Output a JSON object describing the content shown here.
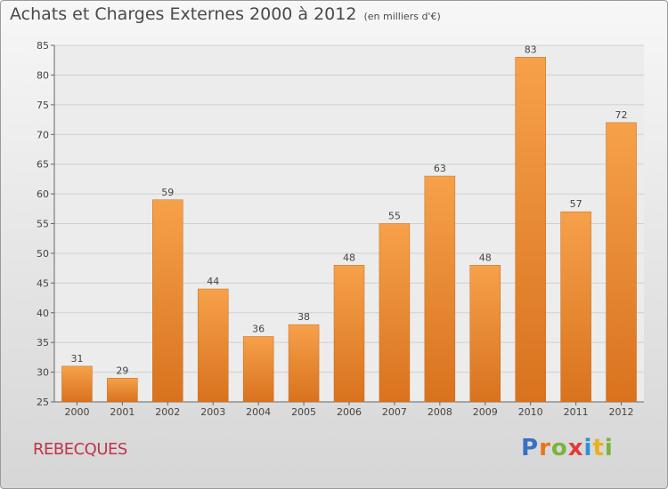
{
  "header": {
    "title": "Achats et Charges Externes 2000 à 2012",
    "unit": "(en milliers d'€)"
  },
  "footer": {
    "commune": "REBECQUES"
  },
  "brand": {
    "letters": [
      "P",
      "r",
      "o",
      "x",
      "i",
      "t",
      "i"
    ],
    "colors": [
      "#3a6fc4",
      "#e8731f",
      "#7ab43a",
      "#e23b3b",
      "#2f8fd6",
      "#e8b21f",
      "#7ab43a"
    ]
  },
  "colors": {
    "bar_top": "#f6a14a",
    "bar_bottom": "#d9721e",
    "axis": "#666666",
    "grid": "#d0d0d0",
    "text": "#444444"
  },
  "chart_data": {
    "type": "bar",
    "title": "Achats et Charges Externes 2000 à 2012",
    "categories": [
      "2000",
      "2001",
      "2002",
      "2003",
      "2004",
      "2005",
      "2006",
      "2007",
      "2008",
      "2009",
      "2010",
      "2011",
      "2012"
    ],
    "values": [
      31,
      29,
      59,
      44,
      36,
      38,
      48,
      55,
      63,
      48,
      83,
      57,
      72
    ],
    "ylim": [
      25,
      85
    ],
    "yticks": [
      25,
      30,
      35,
      40,
      45,
      50,
      55,
      60,
      65,
      70,
      75,
      80,
      85
    ],
    "grid": true,
    "legend": "none"
  }
}
